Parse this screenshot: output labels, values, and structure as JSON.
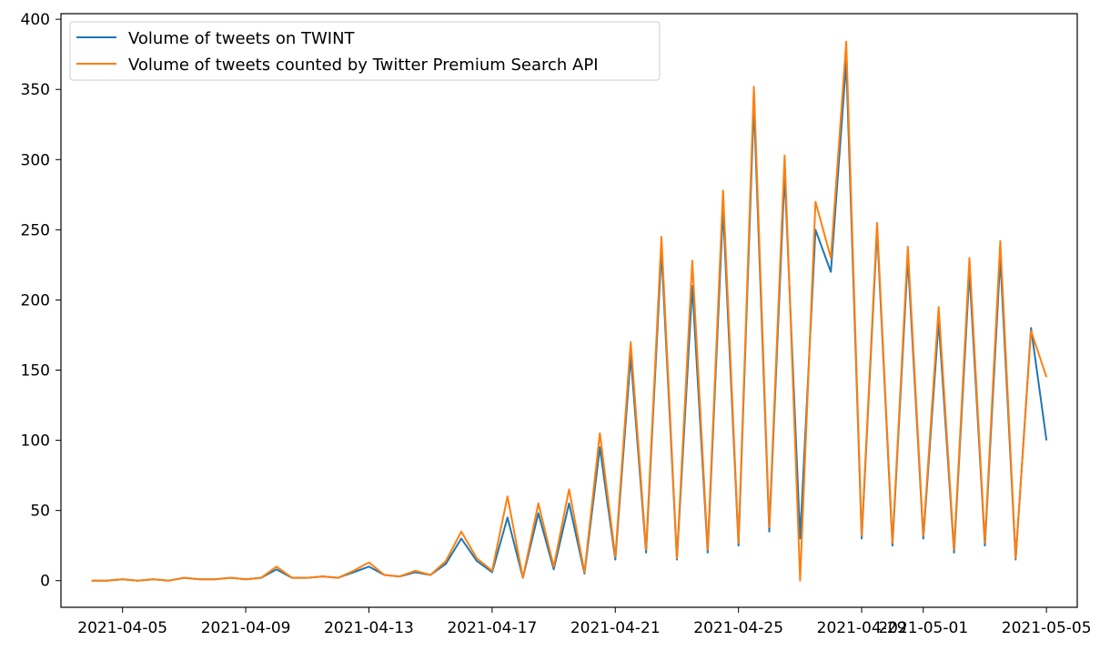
{
  "chart_data": {
    "type": "line",
    "title": "",
    "xlabel": "",
    "ylabel": "",
    "x_domain": [
      "2021-04-03",
      "2021-05-06"
    ],
    "x_ticks": [
      "2021-04-05",
      "2021-04-09",
      "2021-04-13",
      "2021-04-17",
      "2021-04-21",
      "2021-04-25",
      "2021-04-29",
      "2021-05-01",
      "2021-05-05"
    ],
    "y_ticks": [
      0,
      50,
      100,
      150,
      200,
      250,
      300,
      350,
      400
    ],
    "ylim": [
      -19,
      404
    ],
    "grid": false,
    "legend_position": "upper-left",
    "series": [
      {
        "name": "Volume of tweets on TWINT",
        "color": "#1f77b4",
        "points": [
          [
            "2021-04-04T00:00",
            0
          ],
          [
            "2021-04-04T12:00",
            0
          ],
          [
            "2021-04-05T00:00",
            1
          ],
          [
            "2021-04-05T12:00",
            0
          ],
          [
            "2021-04-06T00:00",
            1
          ],
          [
            "2021-04-06T12:00",
            0
          ],
          [
            "2021-04-07T00:00",
            2
          ],
          [
            "2021-04-07T12:00",
            1
          ],
          [
            "2021-04-08T00:00",
            1
          ],
          [
            "2021-04-08T12:00",
            2
          ],
          [
            "2021-04-09T00:00",
            1
          ],
          [
            "2021-04-09T12:00",
            2
          ],
          [
            "2021-04-10T00:00",
            8
          ],
          [
            "2021-04-10T12:00",
            2
          ],
          [
            "2021-04-11T00:00",
            2
          ],
          [
            "2021-04-11T12:00",
            3
          ],
          [
            "2021-04-12T00:00",
            2
          ],
          [
            "2021-04-12T12:00",
            6
          ],
          [
            "2021-04-13T00:00",
            10
          ],
          [
            "2021-04-13T12:00",
            4
          ],
          [
            "2021-04-14T00:00",
            3
          ],
          [
            "2021-04-14T12:00",
            6
          ],
          [
            "2021-04-15T00:00",
            4
          ],
          [
            "2021-04-15T12:00",
            12
          ],
          [
            "2021-04-16T00:00",
            30
          ],
          [
            "2021-04-16T12:00",
            14
          ],
          [
            "2021-04-17T00:00",
            6
          ],
          [
            "2021-04-17T12:00",
            45
          ],
          [
            "2021-04-18T00:00",
            2
          ],
          [
            "2021-04-18T12:00",
            48
          ],
          [
            "2021-04-19T00:00",
            8
          ],
          [
            "2021-04-19T12:00",
            55
          ],
          [
            "2021-04-20T00:00",
            5
          ],
          [
            "2021-04-20T12:00",
            95
          ],
          [
            "2021-04-21T00:00",
            15
          ],
          [
            "2021-04-21T12:00",
            160
          ],
          [
            "2021-04-22T00:00",
            20
          ],
          [
            "2021-04-22T12:00",
            235
          ],
          [
            "2021-04-23T00:00",
            15
          ],
          [
            "2021-04-23T12:00",
            210
          ],
          [
            "2021-04-24T00:00",
            20
          ],
          [
            "2021-04-24T12:00",
            265
          ],
          [
            "2021-04-25T00:00",
            25
          ],
          [
            "2021-04-25T12:00",
            340
          ],
          [
            "2021-04-26T00:00",
            35
          ],
          [
            "2021-04-26T12:00",
            290
          ],
          [
            "2021-04-27T00:00",
            30
          ],
          [
            "2021-04-27T12:00",
            250
          ],
          [
            "2021-04-28T00:00",
            220
          ],
          [
            "2021-04-28T12:00",
            370
          ],
          [
            "2021-04-29T00:00",
            30
          ],
          [
            "2021-04-29T12:00",
            250
          ],
          [
            "2021-04-30T00:00",
            25
          ],
          [
            "2021-04-30T12:00",
            230
          ],
          [
            "2021-05-01T00:00",
            30
          ],
          [
            "2021-05-01T12:00",
            185
          ],
          [
            "2021-05-02T00:00",
            20
          ],
          [
            "2021-05-02T12:00",
            220
          ],
          [
            "2021-05-03T00:00",
            25
          ],
          [
            "2021-05-03T12:00",
            230
          ],
          [
            "2021-05-04T00:00",
            15
          ],
          [
            "2021-05-04T12:00",
            180
          ],
          [
            "2021-05-05T00:00",
            100
          ]
        ]
      },
      {
        "name": "Volume of tweets counted by Twitter Premium Search API",
        "color": "#ff7f0e",
        "points": [
          [
            "2021-04-04T00:00",
            0
          ],
          [
            "2021-04-04T12:00",
            0
          ],
          [
            "2021-04-05T00:00",
            1
          ],
          [
            "2021-04-05T12:00",
            0
          ],
          [
            "2021-04-06T00:00",
            1
          ],
          [
            "2021-04-06T12:00",
            0
          ],
          [
            "2021-04-07T00:00",
            2
          ],
          [
            "2021-04-07T12:00",
            1
          ],
          [
            "2021-04-08T00:00",
            1
          ],
          [
            "2021-04-08T12:00",
            2
          ],
          [
            "2021-04-09T00:00",
            1
          ],
          [
            "2021-04-09T12:00",
            2
          ],
          [
            "2021-04-10T00:00",
            10
          ],
          [
            "2021-04-10T12:00",
            2
          ],
          [
            "2021-04-11T00:00",
            2
          ],
          [
            "2021-04-11T12:00",
            3
          ],
          [
            "2021-04-12T00:00",
            2
          ],
          [
            "2021-04-12T12:00",
            7
          ],
          [
            "2021-04-13T00:00",
            13
          ],
          [
            "2021-04-13T12:00",
            4
          ],
          [
            "2021-04-14T00:00",
            3
          ],
          [
            "2021-04-14T12:00",
            7
          ],
          [
            "2021-04-15T00:00",
            4
          ],
          [
            "2021-04-15T12:00",
            14
          ],
          [
            "2021-04-16T00:00",
            35
          ],
          [
            "2021-04-16T12:00",
            16
          ],
          [
            "2021-04-17T00:00",
            7
          ],
          [
            "2021-04-17T12:00",
            60
          ],
          [
            "2021-04-18T00:00",
            2
          ],
          [
            "2021-04-18T12:00",
            55
          ],
          [
            "2021-04-19T00:00",
            10
          ],
          [
            "2021-04-19T12:00",
            65
          ],
          [
            "2021-04-20T00:00",
            6
          ],
          [
            "2021-04-20T12:00",
            105
          ],
          [
            "2021-04-21T00:00",
            17
          ],
          [
            "2021-04-21T12:00",
            170
          ],
          [
            "2021-04-22T00:00",
            22
          ],
          [
            "2021-04-22T12:00",
            245
          ],
          [
            "2021-04-23T00:00",
            16
          ],
          [
            "2021-04-23T12:00",
            228
          ],
          [
            "2021-04-24T00:00",
            22
          ],
          [
            "2021-04-24T12:00",
            278
          ],
          [
            "2021-04-25T00:00",
            27
          ],
          [
            "2021-04-25T12:00",
            352
          ],
          [
            "2021-04-26T00:00",
            38
          ],
          [
            "2021-04-26T12:00",
            303
          ],
          [
            "2021-04-27T00:00",
            0
          ],
          [
            "2021-04-27T12:00",
            270
          ],
          [
            "2021-04-28T00:00",
            230
          ],
          [
            "2021-04-28T12:00",
            384
          ],
          [
            "2021-04-29T00:00",
            32
          ],
          [
            "2021-04-29T12:00",
            255
          ],
          [
            "2021-04-30T00:00",
            27
          ],
          [
            "2021-04-30T12:00",
            238
          ],
          [
            "2021-05-01T00:00",
            32
          ],
          [
            "2021-05-01T12:00",
            195
          ],
          [
            "2021-05-02T00:00",
            22
          ],
          [
            "2021-05-02T12:00",
            230
          ],
          [
            "2021-05-03T00:00",
            27
          ],
          [
            "2021-05-03T12:00",
            242
          ],
          [
            "2021-05-04T00:00",
            16
          ],
          [
            "2021-05-04T12:00",
            178
          ],
          [
            "2021-05-05T00:00",
            145
          ]
        ]
      }
    ]
  }
}
